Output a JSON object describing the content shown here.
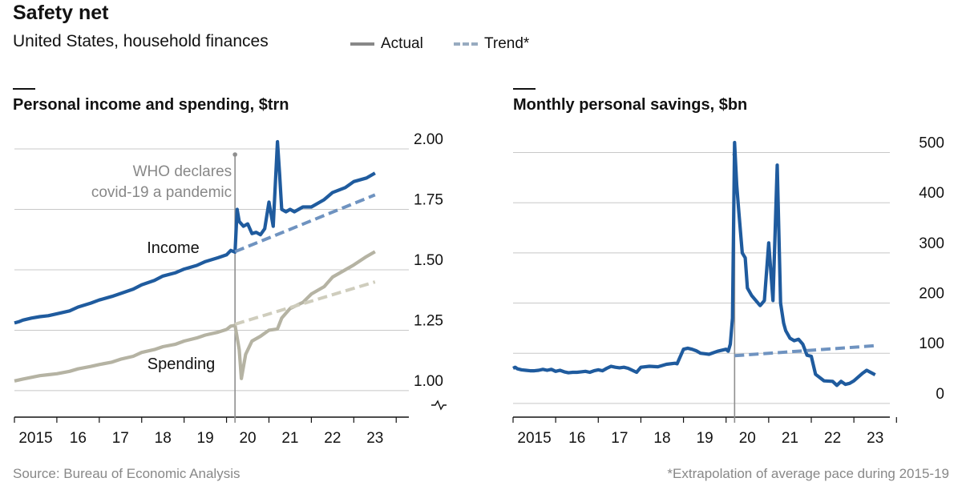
{
  "header": {
    "title": "Safety net",
    "subtitle": "United States, household finances",
    "legend": [
      {
        "label": "Actual",
        "style": "solid",
        "color": "#888888"
      },
      {
        "label": "Trend*",
        "style": "dashed",
        "color": "#98abc0"
      }
    ]
  },
  "colors": {
    "income": "#1f5b9e",
    "spending": "#b5b3a3",
    "income_trend": "#6f93c0",
    "spending_trend": "#cfcdbd",
    "grid": "#c8c8c8",
    "event_line": "#8f8f8f"
  },
  "footer": {
    "source": "Source: Bureau of Economic Analysis",
    "footnote": "*Extrapolation of average pace during 2015-19"
  },
  "chart_data": [
    {
      "type": "line",
      "title": "Personal income and spending, $trn",
      "x_tick_labels": [
        "2015",
        "16",
        "17",
        "18",
        "19",
        "20",
        "21",
        "22",
        "23"
      ],
      "y_tick_labels": [
        "1.00",
        "1.25",
        "1.50",
        "1.75",
        "2.00"
      ],
      "xlim": [
        2015.0,
        2023.75
      ],
      "ylim": [
        0.95,
        2.02
      ],
      "axis_break": true,
      "annotation": {
        "x": 2020.2,
        "lines": [
          "WHO declares",
          "covid-19 a pandemic"
        ]
      },
      "series_labels": {
        "income": "Income",
        "spending": "Spending"
      },
      "series": [
        {
          "name": "Income",
          "x": [
            2015.0,
            2015.1,
            2015.2,
            2015.4,
            2015.6,
            2015.8,
            2016.0,
            2016.3,
            2016.5,
            2016.8,
            2017.0,
            2017.3,
            2017.5,
            2017.8,
            2018.0,
            2018.3,
            2018.5,
            2018.8,
            2019.0,
            2019.3,
            2019.5,
            2019.8,
            2020.0,
            2020.1,
            2020.2,
            2020.25,
            2020.3,
            2020.4,
            2020.5,
            2020.6,
            2020.7,
            2020.8,
            2020.9,
            2021.0,
            2021.1,
            2021.2,
            2021.25,
            2021.3,
            2021.4,
            2021.5,
            2021.6,
            2021.8,
            2022.0,
            2022.3,
            2022.5,
            2022.8,
            2023.0,
            2023.3,
            2023.5
          ],
          "values": [
            1.28,
            1.285,
            1.292,
            1.3,
            1.306,
            1.31,
            1.318,
            1.33,
            1.346,
            1.362,
            1.375,
            1.39,
            1.402,
            1.42,
            1.438,
            1.456,
            1.474,
            1.488,
            1.503,
            1.518,
            1.534,
            1.55,
            1.562,
            1.58,
            1.573,
            1.75,
            1.7,
            1.68,
            1.69,
            1.65,
            1.655,
            1.645,
            1.67,
            1.78,
            1.68,
            2.03,
            1.9,
            1.75,
            1.74,
            1.75,
            1.74,
            1.76,
            1.76,
            1.79,
            1.82,
            1.84,
            1.865,
            1.88,
            1.9
          ]
        },
        {
          "name": "Spending",
          "x": [
            2015.0,
            2015.2,
            2015.4,
            2015.6,
            2015.8,
            2016.0,
            2016.3,
            2016.5,
            2016.8,
            2017.0,
            2017.3,
            2017.5,
            2017.8,
            2018.0,
            2018.3,
            2018.5,
            2018.8,
            2019.0,
            2019.3,
            2019.5,
            2019.8,
            2020.0,
            2020.1,
            2020.2,
            2020.3,
            2020.35,
            2020.45,
            2020.6,
            2020.8,
            2021.0,
            2021.2,
            2021.3,
            2021.5,
            2021.8,
            2022.0,
            2022.3,
            2022.5,
            2022.8,
            2023.0,
            2023.3,
            2023.5
          ],
          "values": [
            1.04,
            1.048,
            1.055,
            1.062,
            1.066,
            1.07,
            1.08,
            1.09,
            1.1,
            1.108,
            1.118,
            1.13,
            1.142,
            1.158,
            1.17,
            1.182,
            1.192,
            1.205,
            1.218,
            1.23,
            1.242,
            1.253,
            1.267,
            1.27,
            1.17,
            1.05,
            1.15,
            1.205,
            1.225,
            1.25,
            1.255,
            1.3,
            1.34,
            1.365,
            1.4,
            1.43,
            1.47,
            1.5,
            1.52,
            1.555,
            1.575
          ]
        },
        {
          "name": "Income trend",
          "style": "dashed",
          "x": [
            2020.2,
            2023.5
          ],
          "values": [
            1.575,
            1.81
          ]
        },
        {
          "name": "Spending trend",
          "style": "dashed",
          "x": [
            2020.2,
            2023.5
          ],
          "values": [
            1.275,
            1.45
          ]
        }
      ]
    },
    {
      "type": "line",
      "title": "Monthly personal savings, $bn",
      "x_tick_labels": [
        "2015",
        "16",
        "17",
        "18",
        "19",
        "20",
        "21",
        "22",
        "23"
      ],
      "y_tick_labels": [
        "0",
        "100",
        "200",
        "300",
        "400",
        "500"
      ],
      "xlim": [
        2015.0,
        2023.75
      ],
      "ylim": [
        -5,
        520
      ],
      "annotation_x": 2020.2,
      "series": [
        {
          "name": "Savings",
          "x": [
            2015.0,
            2015.05,
            2015.1,
            2015.2,
            2015.3,
            2015.4,
            2015.5,
            2015.6,
            2015.7,
            2015.8,
            2015.9,
            2016.0,
            2016.1,
            2016.2,
            2016.3,
            2016.4,
            2016.5,
            2016.6,
            2016.7,
            2016.8,
            2016.9,
            2017.0,
            2017.1,
            2017.2,
            2017.3,
            2017.4,
            2017.5,
            2017.6,
            2017.7,
            2017.8,
            2017.9,
            2018.0,
            2018.2,
            2018.4,
            2018.6,
            2018.8,
            2018.85,
            2019.0,
            2019.1,
            2019.2,
            2019.3,
            2019.4,
            2019.5,
            2019.6,
            2019.8,
            2020.0,
            2020.05,
            2020.1,
            2020.15,
            2020.2,
            2020.25,
            2020.3,
            2020.38,
            2020.45,
            2020.5,
            2020.6,
            2020.8,
            2020.9,
            2021.0,
            2021.1,
            2021.2,
            2021.28,
            2021.35,
            2021.4,
            2021.5,
            2021.6,
            2021.7,
            2021.8,
            2021.9,
            2022.0,
            2022.1,
            2022.3,
            2022.5,
            2022.6,
            2022.7,
            2022.8,
            2022.9,
            2023.0,
            2023.2,
            2023.3,
            2023.5
          ],
          "values": [
            70,
            72,
            69,
            67,
            66,
            65,
            65,
            66,
            68,
            66,
            68,
            64,
            66,
            63,
            61,
            62,
            62,
            63,
            64,
            62,
            65,
            67,
            65,
            70,
            74,
            72,
            71,
            72,
            70,
            66,
            62,
            72,
            74,
            73,
            78,
            80,
            79,
            108,
            110,
            108,
            105,
            100,
            99,
            98,
            104,
            108,
            104,
            118,
            170,
            520,
            435,
            380,
            300,
            290,
            230,
            215,
            195,
            205,
            320,
            205,
            475,
            200,
            160,
            145,
            130,
            125,
            128,
            118,
            96,
            94,
            58,
            45,
            44,
            36,
            44,
            38,
            40,
            45,
            60,
            66,
            57
          ]
        },
        {
          "name": "Savings trend",
          "style": "dashed",
          "x": [
            2020.2,
            2023.5
          ],
          "values": [
            95,
            115
          ]
        }
      ]
    }
  ]
}
